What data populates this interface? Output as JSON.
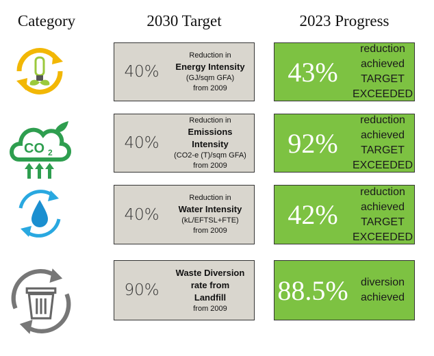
{
  "headers": [
    "Category",
    "2030 Target",
    "2023 Progress"
  ],
  "rows": [
    {
      "target": {
        "value": "40%",
        "intro": "Reduction in",
        "metric": [
          "Energy Intensity"
        ],
        "notes": [
          "(GJ/sqm GFA)",
          "from 2009"
        ]
      },
      "progress": {
        "value": "43%",
        "lines": [
          "reduction",
          "achieved",
          "TARGET",
          "EXCEEDED"
        ]
      }
    },
    {
      "icon_label": [
        "CO",
        "2"
      ],
      "target": {
        "value": "40%",
        "intro": "Reduction in",
        "metric": [
          "Emissions",
          "Intensity"
        ],
        "notes": [
          "(CO2-e (T)/sqm GFA)",
          "from 2009"
        ]
      },
      "progress": {
        "value": "92%",
        "lines": [
          "reduction",
          "achieved",
          "TARGET",
          "EXCEEDED"
        ]
      }
    },
    {
      "target": {
        "value": "40%",
        "intro": "Reduction in",
        "metric": [
          "Water Intensity"
        ],
        "notes": [
          "(kL/EFTSL+FTE)",
          "from 2009"
        ]
      },
      "progress": {
        "value": "42%",
        "lines": [
          "reduction",
          "achieved",
          "TARGET",
          "EXCEEDED"
        ]
      }
    },
    {
      "target": {
        "value": "90%",
        "metric": [
          "Waste Diversion",
          "rate from",
          "Landfill"
        ],
        "notes": [
          "from 2009"
        ]
      },
      "progress": {
        "value": "88.5%",
        "lines": [
          "diversion",
          "achieved"
        ]
      }
    }
  ]
}
